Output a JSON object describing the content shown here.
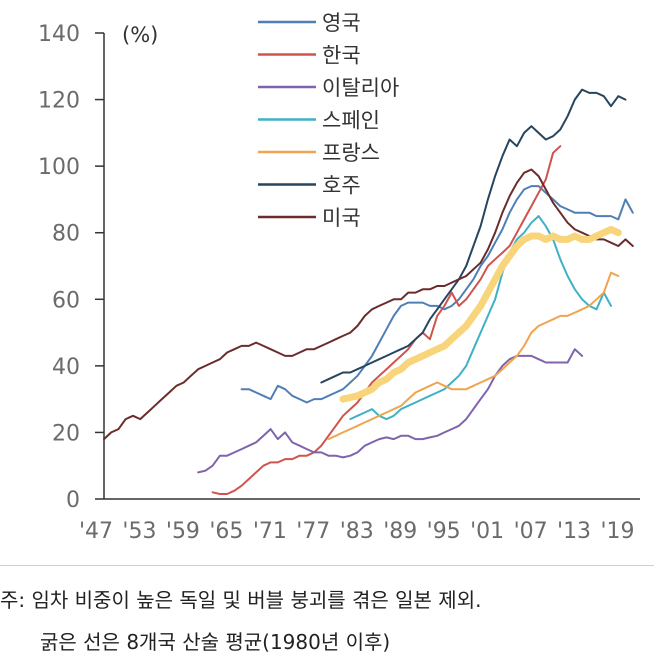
{
  "chart_data": {
    "type": "line",
    "unit_label": "(%)",
    "x_tick_labels": [
      "'47",
      "'53",
      "'59",
      "'65",
      "'71",
      "'77",
      "'83",
      "'89",
      "'95",
      "'01",
      "'07",
      "'13",
      "'19"
    ],
    "x_tick_years": [
      1947,
      1953,
      1959,
      1965,
      1971,
      1977,
      1983,
      1989,
      1995,
      2001,
      2007,
      2013,
      2019
    ],
    "xlim": [
      1947,
      2021
    ],
    "ylim": [
      0,
      140
    ],
    "y_ticks": [
      0,
      20,
      40,
      60,
      80,
      100,
      120,
      140
    ],
    "legend_position": "top-center",
    "series": [
      {
        "name": "영국",
        "color": "#4f7fb5",
        "width": 2,
        "start": 1966,
        "values": [
          33,
          33,
          32,
          31,
          30,
          34,
          33,
          31,
          30,
          29,
          30,
          30,
          31,
          32,
          33,
          35,
          37,
          40,
          43,
          47,
          51,
          55,
          58,
          59,
          59,
          59,
          58,
          58,
          57,
          58,
          60,
          63,
          66,
          70,
          73,
          77,
          81,
          86,
          90,
          93,
          94,
          94,
          92,
          90,
          88,
          87,
          86,
          86,
          86,
          85,
          85,
          85,
          84,
          90,
          86
        ]
      },
      {
        "name": "한국",
        "color": "#d0534d",
        "width": 2,
        "start": 1962,
        "values": [
          2,
          1.5,
          1.5,
          2.5,
          4,
          6,
          8,
          10,
          11,
          11,
          12,
          12,
          13,
          13,
          14,
          16,
          19,
          22,
          25,
          27,
          29,
          32,
          35,
          37,
          39,
          41,
          43,
          45,
          48,
          50,
          48,
          55,
          58,
          62,
          58,
          60,
          63,
          66,
          70,
          72,
          74,
          76,
          80,
          84,
          88,
          92,
          96,
          104,
          106
        ]
      },
      {
        "name": "이탈리아",
        "color": "#7f64ad",
        "width": 2,
        "start": 1960,
        "values": [
          8,
          8.5,
          10,
          13,
          13,
          14,
          15,
          16,
          17,
          19,
          21,
          18,
          20,
          17,
          16,
          15,
          14,
          14,
          13,
          13,
          12.5,
          13,
          14,
          16,
          17,
          18,
          18.5,
          18,
          19,
          19,
          18,
          18,
          18.5,
          19,
          20,
          21,
          22,
          24,
          27,
          30,
          33,
          37,
          40,
          42,
          43,
          43,
          43,
          42,
          41,
          41,
          41,
          41,
          45,
          43
        ]
      },
      {
        "name": "스페인",
        "color": "#3fb0c6",
        "width": 2,
        "start": 1981,
        "values": [
          24,
          25,
          26,
          27,
          25,
          24,
          25,
          27,
          28,
          29,
          30,
          31,
          32,
          33,
          35,
          37,
          40,
          45,
          50,
          55,
          60,
          68,
          74,
          78,
          80,
          83,
          85,
          82,
          78,
          72,
          67,
          63,
          60,
          58,
          57,
          62,
          58
        ]
      },
      {
        "name": "프랑스",
        "color": "#f0a44e",
        "width": 2,
        "start": 1978,
        "values": [
          18,
          19,
          20,
          21,
          22,
          23,
          24,
          25,
          26,
          27,
          28,
          30,
          32,
          33,
          34,
          35,
          34,
          33,
          33,
          33,
          34,
          35,
          36,
          37,
          39,
          41,
          43,
          46,
          50,
          52,
          53,
          54,
          55,
          55,
          56,
          57,
          58,
          60,
          62,
          68,
          67
        ]
      },
      {
        "name": "호주",
        "color": "#27455e",
        "width": 2,
        "start": 1977,
        "values": [
          35,
          36,
          37,
          38,
          38,
          39,
          40,
          41,
          42,
          43,
          44,
          45,
          46,
          48,
          50,
          54,
          57,
          60,
          63,
          66,
          70,
          76,
          82,
          90,
          97,
          103,
          108,
          106,
          110,
          112,
          110,
          108,
          109,
          111,
          115,
          120,
          123,
          122,
          122,
          121,
          118,
          121,
          120
        ]
      },
      {
        "name": "미국",
        "color": "#6a2c2c",
        "width": 2,
        "start": 1947,
        "values": [
          18,
          20,
          21,
          24,
          25,
          24,
          26,
          28,
          30,
          32,
          34,
          35,
          37,
          39,
          40,
          41,
          42,
          44,
          45,
          46,
          46,
          47,
          46,
          45,
          44,
          43,
          43,
          44,
          45,
          45,
          46,
          47,
          48,
          49,
          50,
          52,
          55,
          57,
          58,
          59,
          60,
          60,
          62,
          62,
          63,
          63,
          64,
          64,
          65,
          66,
          67,
          69,
          71,
          75,
          80,
          86,
          91,
          95,
          98,
          99,
          97,
          93,
          89,
          86,
          83,
          81,
          80,
          79,
          78,
          78,
          77,
          76,
          78,
          76
        ]
      },
      {
        "name": "",
        "color": "#f8d47a",
        "width": 7,
        "start": 1980,
        "values": [
          30,
          30.5,
          31,
          32,
          33,
          35,
          36,
          38,
          39,
          41,
          42,
          43,
          44,
          45,
          46,
          48,
          50,
          52,
          55,
          58,
          62,
          66,
          70,
          73,
          76,
          78,
          79,
          79,
          78,
          79,
          78,
          78,
          79,
          78,
          78,
          79,
          80,
          81,
          80
        ]
      }
    ]
  },
  "note_line1": "주: 임차 비중이 높은 독일 및 버블 붕괴를 겪은 일본 제외.",
  "note_line2": "굵은 선은 8개국 산술 평균(1980년 이후)"
}
